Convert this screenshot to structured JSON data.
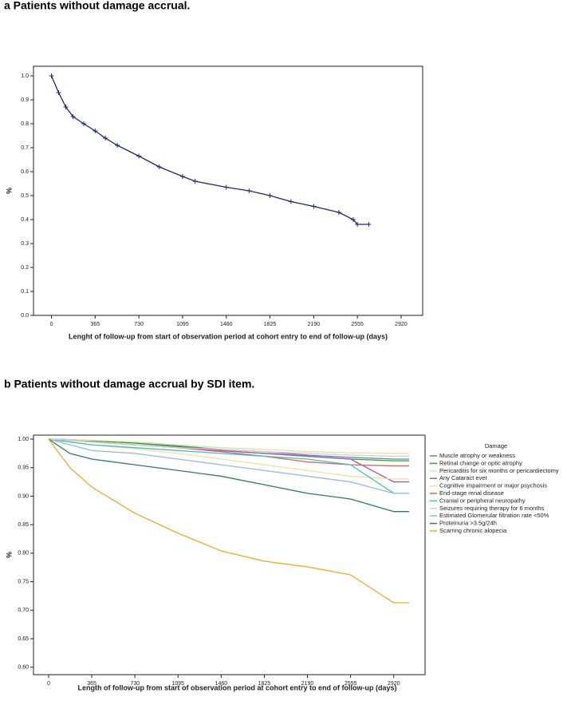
{
  "chart_data": [
    {
      "type": "line",
      "title": "a  Patients without damage accrual.",
      "x_label": "Lenght of follow-up from start of observation period at cohort entry to end of follow-up (days)",
      "y_label": "%",
      "x": [
        0,
        60,
        120,
        180,
        270,
        365,
        450,
        550,
        730,
        900,
        1095,
        1200,
        1460,
        1650,
        1825,
        2000,
        2190,
        2400,
        2520,
        2555,
        2650
      ],
      "series": [
        {
          "color": "#1f2a6e",
          "values": [
            1.0,
            0.93,
            0.87,
            0.83,
            0.8,
            0.77,
            0.74,
            0.71,
            0.665,
            0.62,
            0.58,
            0.56,
            0.535,
            0.52,
            0.5,
            0.475,
            0.455,
            0.43,
            0.4,
            0.38,
            0.38
          ]
        }
      ],
      "censor_marks": true,
      "xlim": [
        -150,
        3100
      ],
      "ylim": [
        0,
        1.04
      ],
      "xticks": [
        0,
        365,
        730,
        1095,
        1460,
        1825,
        2190,
        2555,
        2920
      ],
      "yticks": [
        {
          "value": 0,
          "label": "0.0"
        },
        0.1,
        0.2,
        0.3,
        0.4,
        0.5,
        0.6,
        0.7,
        0.8,
        0.9,
        {
          "value": 1,
          "label": "1.0"
        }
      ]
    },
    {
      "type": "line",
      "title": "b  Patients without damage accrual by SDI item.",
      "x_label": "Length of follow-up from start of observation period at cohort entry to end of follow-up (days)",
      "y_label": "%",
      "legend": "right",
      "legend_title": "Damage",
      "x": [
        0,
        180,
        365,
        730,
        1095,
        1460,
        1825,
        2190,
        2555,
        2920,
        3050
      ],
      "series": [
        {
          "name": "Muscle atrophy or weakness",
          "color": "#6a7fb8",
          "values": [
            1.0,
            0.999,
            0.997,
            0.993,
            0.988,
            0.982,
            0.978,
            0.972,
            0.968,
            0.965,
            0.965
          ]
        },
        {
          "name": "Retinal change or optic atrophy",
          "color": "#2ca02c",
          "values": [
            1.0,
            0.999,
            0.997,
            0.993,
            0.987,
            0.98,
            0.975,
            0.97,
            0.965,
            0.962,
            0.962
          ]
        },
        {
          "name": "Pericarditis for six months or pericardiectomy",
          "color": "#e0e0a8",
          "values": [
            1.0,
            0.999,
            0.998,
            0.995,
            0.99,
            0.985,
            0.982,
            0.978,
            0.976,
            0.975,
            0.975
          ]
        },
        {
          "name": "Any Cataract ever",
          "color": "#9b59b6",
          "values": [
            1.0,
            0.998,
            0.995,
            0.99,
            0.985,
            0.98,
            0.975,
            0.97,
            0.965,
            0.925,
            0.925
          ]
        },
        {
          "name": "Cognitive impairment or major psychosis",
          "color": "#f0e2a0",
          "values": [
            1.0,
            0.995,
            0.99,
            0.983,
            0.975,
            0.965,
            0.955,
            0.945,
            0.935,
            0.93,
            0.93
          ]
        },
        {
          "name": "End-stage renal disease",
          "color": "#e06060",
          "values": [
            1.0,
            0.998,
            0.995,
            0.99,
            0.985,
            0.978,
            0.97,
            0.96,
            0.955,
            0.953,
            0.953
          ]
        },
        {
          "name": "Cranial or peripheral neuropathy",
          "color": "#40c0c0",
          "values": [
            1.0,
            0.995,
            0.99,
            0.985,
            0.98,
            0.975,
            0.97,
            0.965,
            0.955,
            0.905,
            0.905
          ]
        },
        {
          "name": "Seizures requiring therapy for 6 months",
          "color": "#d0d0d0",
          "values": [
            1.0,
            0.998,
            0.995,
            0.99,
            0.985,
            0.982,
            0.978,
            0.975,
            0.972,
            0.97,
            0.97
          ]
        },
        {
          "name": "Estimated Glomerular filtration rate <50%",
          "color": "#99b8e0",
          "values": [
            1.0,
            0.99,
            0.98,
            0.975,
            0.965,
            0.955,
            0.945,
            0.935,
            0.925,
            0.905,
            0.905
          ]
        },
        {
          "name": "Proteinuria >3.5g/24h",
          "color": "#2e7d5b",
          "values": [
            1.0,
            0.975,
            0.965,
            0.955,
            0.945,
            0.935,
            0.92,
            0.905,
            0.895,
            0.873,
            0.873
          ]
        },
        {
          "name": "Scarring chronic alopecia",
          "color": "#f5a623",
          "values": [
            1.0,
            0.95,
            0.916,
            0.87,
            0.835,
            0.804,
            0.786,
            0.776,
            0.762,
            0.713,
            0.713
          ]
        }
      ],
      "xlim": [
        -128,
        3185
      ],
      "ylim": [
        0.587,
        1.007
      ],
      "xticks": [
        0,
        365,
        730,
        1095,
        1460,
        1825,
        2190,
        2555,
        2920
      ],
      "yticks": [
        {
          "value": 0.6,
          "label": "0.60"
        },
        0.65,
        {
          "value": 0.7,
          "label": "0.70"
        },
        0.75,
        {
          "value": 0.8,
          "label": "0.80"
        },
        0.85,
        {
          "value": 0.9,
          "label": "0.90"
        },
        0.95,
        {
          "value": 1,
          "label": "1.00"
        }
      ]
    }
  ]
}
